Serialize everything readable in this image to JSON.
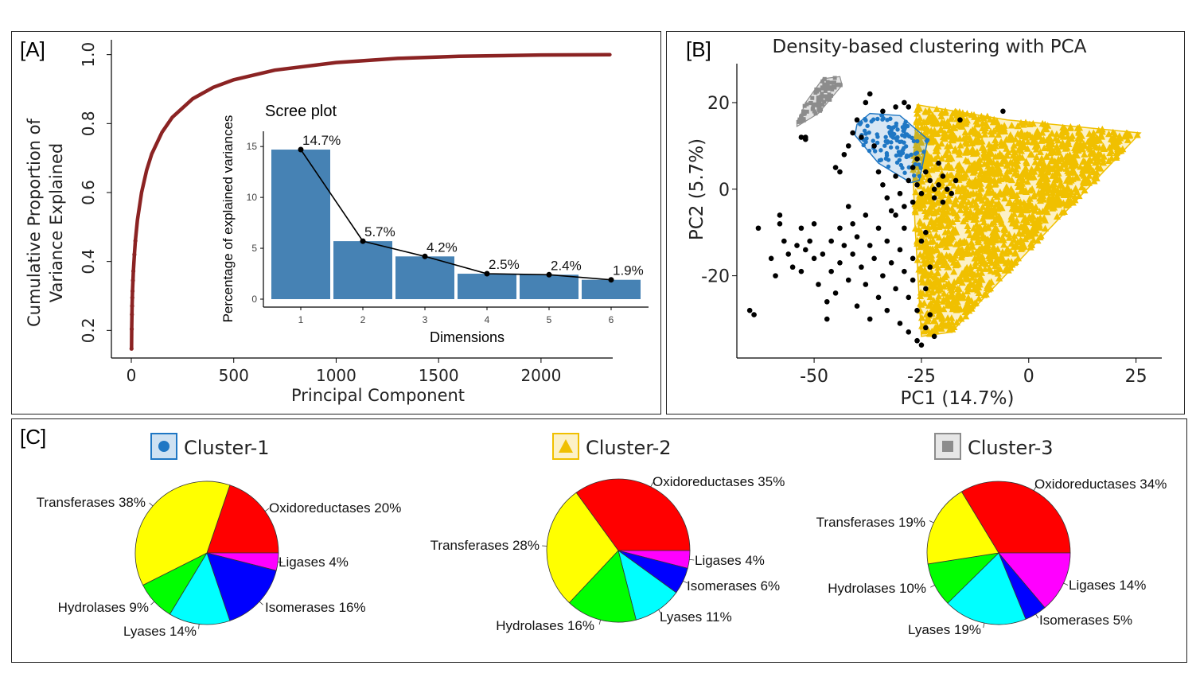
{
  "panels": {
    "a": {
      "tag": "[A]"
    },
    "b": {
      "tag": "[B]",
      "title": "Density-based clustering with PCA"
    },
    "c": {
      "tag": "[C]"
    }
  },
  "colors": {
    "cumulative": "#8b2323",
    "scree_bar": "#4682b4",
    "cluster1": "#1f77c4",
    "cluster2": "#f0c000",
    "cluster3": "#8c8c8c",
    "noise": "#000000",
    "Oxidoreductases": "#ff0000",
    "Transferases": "#ffff00",
    "Hydrolases": "#00ff00",
    "Lyases": "#00ffff",
    "Isomerases": "#0000ff",
    "Ligases": "#ff00ff"
  },
  "chart_data": [
    {
      "type": "line",
      "id": "cumulative-variance",
      "xlabel": "Principal Component",
      "ylabel": [
        "Cumulative Proportion of",
        "Variance Explained"
      ],
      "xlim": [
        0,
        2350
      ],
      "ylim": [
        0.12,
        1.02
      ],
      "xticks": [
        "0",
        "500",
        "1000",
        "1500",
        "2000"
      ],
      "xtick_values": [
        0,
        500,
        1000,
        1500,
        2000
      ],
      "yticks": [
        "0.2",
        "0.4",
        "0.6",
        "0.8",
        "1.0"
      ],
      "ytick_values": [
        0.2,
        0.4,
        0.6,
        0.8,
        1.0
      ],
      "n_components": 2336,
      "curve_points": [
        [
          1,
          0.147
        ],
        [
          2,
          0.204
        ],
        [
          3,
          0.246
        ],
        [
          4,
          0.271
        ],
        [
          5,
          0.295
        ],
        [
          6,
          0.314
        ],
        [
          8,
          0.345
        ],
        [
          10,
          0.372
        ],
        [
          15,
          0.42
        ],
        [
          20,
          0.46
        ],
        [
          30,
          0.52
        ],
        [
          50,
          0.6
        ],
        [
          75,
          0.665
        ],
        [
          100,
          0.712
        ],
        [
          150,
          0.775
        ],
        [
          200,
          0.818
        ],
        [
          300,
          0.872
        ],
        [
          400,
          0.905
        ],
        [
          500,
          0.927
        ],
        [
          700,
          0.955
        ],
        [
          1000,
          0.977
        ],
        [
          1300,
          0.989
        ],
        [
          1600,
          0.995
        ],
        [
          2000,
          0.999
        ],
        [
          2336,
          1.0
        ]
      ],
      "grid": false
    },
    {
      "type": "bar",
      "id": "scree-plot",
      "title": "Scree plot",
      "xlabel": "Dimensions",
      "ylabel": "Percentage of explained variances",
      "categories": [
        "1",
        "2",
        "3",
        "4",
        "5",
        "6"
      ],
      "values": [
        14.7,
        5.7,
        4.2,
        2.5,
        2.4,
        1.9
      ],
      "labels": [
        "14.7%",
        "5.7%",
        "4.2%",
        "2.5%",
        "2.4%",
        "1.9%"
      ],
      "ylim": [
        0,
        16.5
      ],
      "yticks": [
        "0",
        "5",
        "10",
        "15"
      ],
      "ytick_values": [
        0,
        5,
        10,
        15
      ],
      "grid": false
    },
    {
      "type": "scatter",
      "id": "pca-clusters",
      "title": "Density-based clustering with PCA",
      "xlabel": "PC1 (14.7%)",
      "ylabel": "PC2 (5.7%)",
      "xlim": [
        -68,
        31
      ],
      "ylim": [
        -39,
        29
      ],
      "xticks": [
        "-50",
        "-25",
        "0",
        "25"
      ],
      "xtick_values": [
        -50,
        -25,
        0,
        25
      ],
      "yticks": [
        "-20",
        "0",
        "20"
      ],
      "ytick_values": [
        -20,
        0,
        20
      ],
      "hulls": {
        "cluster1": [
          [
            -40,
            15
          ],
          [
            -37,
            17.5
          ],
          [
            -30,
            17
          ],
          [
            -23.5,
            11.5
          ],
          [
            -25.5,
            2
          ],
          [
            -27.5,
            1.5
          ],
          [
            -35,
            6
          ],
          [
            -40.5,
            12.5
          ]
        ],
        "cluster2": [
          [
            -26,
            19.5
          ],
          [
            -5,
            16
          ],
          [
            26,
            13
          ],
          [
            -18,
            -33
          ],
          [
            -25,
            -34
          ],
          [
            -26.5,
            -8
          ],
          [
            -27,
            5
          ]
        ],
        "cluster3": [
          [
            -54,
            15
          ],
          [
            -52,
            20
          ],
          [
            -48,
            25.5
          ],
          [
            -44,
            26
          ],
          [
            -43.5,
            24
          ],
          [
            -49,
            17.5
          ],
          [
            -54,
            14.5
          ]
        ]
      },
      "noise_points": [
        [
          -65,
          -28
        ],
        [
          -64,
          -29
        ],
        [
          -63,
          -9
        ],
        [
          -60,
          -16
        ],
        [
          -59,
          -20
        ],
        [
          -58,
          -6
        ],
        [
          -58,
          -8
        ],
        [
          -57,
          -12
        ],
        [
          -56,
          -15
        ],
        [
          -55,
          -18
        ],
        [
          -54,
          -13
        ],
        [
          -53,
          -9
        ],
        [
          -53,
          -19
        ],
        [
          -52,
          -14
        ],
        [
          -51,
          -12
        ],
        [
          -50,
          -8
        ],
        [
          -50,
          -16
        ],
        [
          -49,
          -22
        ],
        [
          -48,
          -15
        ],
        [
          -47,
          -26
        ],
        [
          -47,
          -30
        ],
        [
          -46,
          -12
        ],
        [
          -46,
          -19
        ],
        [
          -45,
          -24
        ],
        [
          -44,
          -9
        ],
        [
          -44,
          -17
        ],
        [
          -43,
          -13
        ],
        [
          -42,
          -21
        ],
        [
          -42,
          -4
        ],
        [
          -41,
          -8
        ],
        [
          -41,
          -15
        ],
        [
          -40,
          -27
        ],
        [
          -40,
          -11
        ],
        [
          -39,
          -18
        ],
        [
          -38,
          -6
        ],
        [
          -38,
          -22
        ],
        [
          -37,
          -13
        ],
        [
          -37,
          -30
        ],
        [
          -36,
          -16
        ],
        [
          -35,
          -9
        ],
        [
          -35,
          -25
        ],
        [
          -34,
          -20
        ],
        [
          -33,
          -12
        ],
        [
          -33,
          -28
        ],
        [
          -32,
          -17
        ],
        [
          -31,
          -23
        ],
        [
          -31,
          -6
        ],
        [
          -30,
          -14
        ],
        [
          -30,
          -31
        ],
        [
          -29,
          -19
        ],
        [
          -29,
          -9
        ],
        [
          -28,
          -25
        ],
        [
          -28,
          -33
        ],
        [
          -27,
          -16
        ],
        [
          -27,
          -21
        ],
        [
          -26,
          -35
        ],
        [
          -26,
          -28
        ],
        [
          -25,
          -12
        ],
        [
          -25,
          -36
        ],
        [
          -24,
          -32
        ],
        [
          -24,
          -23
        ],
        [
          -23,
          -29
        ],
        [
          -22,
          -34
        ],
        [
          -23,
          -18
        ],
        [
          -45,
          5
        ],
        [
          -44,
          4
        ],
        [
          -43,
          8
        ],
        [
          -42,
          10
        ],
        [
          -41,
          13
        ],
        [
          -40,
          16
        ],
        [
          -39,
          12
        ],
        [
          -38,
          20
        ],
        [
          -37,
          22
        ],
        [
          -36,
          10
        ],
        [
          -35,
          4
        ],
        [
          -34,
          1
        ],
        [
          -33,
          -2
        ],
        [
          -32,
          -5
        ],
        [
          -31,
          3
        ],
        [
          -30,
          -1
        ],
        [
          -29,
          -4
        ],
        [
          -28,
          2
        ],
        [
          -27,
          -3
        ],
        [
          -26,
          1
        ],
        [
          -25,
          -1
        ],
        [
          -24,
          4
        ],
        [
          -23,
          2
        ],
        [
          -22,
          -2
        ],
        [
          -21,
          1
        ],
        [
          -20,
          -3
        ],
        [
          -19,
          0
        ],
        [
          -18,
          -1
        ],
        [
          -17,
          2
        ],
        [
          -16,
          16
        ],
        [
          -6,
          18
        ],
        [
          -29,
          20
        ],
        [
          -28,
          19
        ],
        [
          -34,
          18
        ],
        [
          -31,
          19
        ],
        [
          -27,
          5
        ],
        [
          -26,
          7
        ],
        [
          -22,
          0
        ],
        [
          -21,
          6
        ],
        [
          -20,
          3
        ],
        [
          -53,
          12
        ],
        [
          -52,
          11.5
        ],
        [
          -52,
          12
        ],
        [
          -24,
          -10
        ]
      ],
      "clusters": [
        {
          "name": "Cluster-1",
          "marker": "circle",
          "n_points": 110
        },
        {
          "name": "Cluster-2",
          "marker": "triangle",
          "n_points": 1800
        },
        {
          "name": "Cluster-3",
          "marker": "square",
          "n_points": 80
        }
      ],
      "grid": false
    },
    {
      "type": "pie",
      "id": "pie-cluster-1",
      "title": "Cluster-1",
      "labels": [
        "Oxidoreductases 20%",
        "Ligases 4%",
        "Isomerases 16%",
        "Lyases 14%",
        "Hydrolases 9%",
        "Transferases 38%"
      ],
      "categories": [
        "Oxidoreductases",
        "Ligases",
        "Isomerases",
        "Lyases",
        "Hydrolases",
        "Transferases"
      ],
      "values": [
        20,
        4,
        16,
        14,
        9,
        38
      ]
    },
    {
      "type": "pie",
      "id": "pie-cluster-2",
      "title": "Cluster-2",
      "labels": [
        "Oxidoreductases 35%",
        "Ligases 4%",
        "Isomerases 6%",
        "Lyases 11%",
        "Hydrolases 16%",
        "Transferases 28%"
      ],
      "categories": [
        "Oxidoreductases",
        "Ligases",
        "Isomerases",
        "Lyases",
        "Hydrolases",
        "Transferases"
      ],
      "values": [
        35,
        4,
        6,
        11,
        16,
        28
      ]
    },
    {
      "type": "pie",
      "id": "pie-cluster-3",
      "title": "Cluster-3",
      "labels": [
        "Oxidoreductases 34%",
        "Ligases 14%",
        "Isomerases 5%",
        "Lyases 19%",
        "Hydrolases 10%",
        "Transferases 19%"
      ],
      "categories": [
        "Oxidoreductases",
        "Ligases",
        "Isomerases",
        "Lyases",
        "Hydrolases",
        "Transferases"
      ],
      "values": [
        34,
        14,
        5,
        19,
        10,
        19
      ]
    }
  ]
}
